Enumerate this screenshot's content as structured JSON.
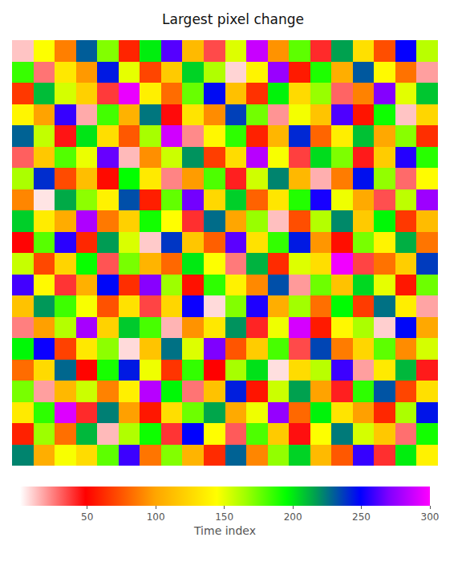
{
  "chart_data": {
    "type": "heatmap",
    "title": "Largest pixel change",
    "tick_labels": false,
    "colorbar_title": "Time index",
    "colorbar_range": [
      1,
      300
    ],
    "colorbar_ticks": [
      50,
      100,
      150,
      200,
      250,
      300
    ],
    "cells": [
      [
        12,
        145,
        88,
        230,
        171,
        60,
        199,
        263,
        110,
        35,
        152,
        287,
        94,
        178,
        41,
        216,
        129,
        73,
        250,
        160
      ],
      [
        185,
        27,
        133,
        96,
        244,
        150,
        70,
        118,
        205,
        162,
        9,
        139,
        276,
        57,
        190,
        104,
        231,
        142,
        84,
        19
      ],
      [
        66,
        210,
        154,
        121,
        38,
        295,
        137,
        82,
        176,
        247,
        113,
        64,
        198,
        126,
        167,
        30,
        89,
        271,
        151,
        208
      ],
      [
        140,
        99,
        258,
        17,
        183,
        106,
        225,
        47,
        131,
        92,
        236,
        174,
        21,
        147,
        115,
        262,
        55,
        193,
        12,
        124
      ],
      [
        229,
        158,
        45,
        201,
        128,
        76,
        164,
        289,
        23,
        141,
        187,
        59,
        108,
        241,
        80,
        136,
        209,
        101,
        170,
        63
      ],
      [
        31,
        117,
        180,
        149,
        266,
        14,
        93,
        156,
        219,
        68,
        127,
        283,
        146,
        37,
        203,
        172,
        44,
        119,
        255,
        188
      ],
      [
        163,
        240,
        72,
        112,
        52,
        195,
        134,
        24,
        97,
        181,
        43,
        155,
        222,
        109,
        16,
        87,
        246,
        168,
        29,
        143
      ],
      [
        90,
        6,
        214,
        169,
        138,
        233,
        58,
        177,
        268,
        125,
        206,
        79,
        132,
        189,
        253,
        148,
        102,
        34,
        159,
        277
      ],
      [
        206,
        135,
        103,
        281,
        86,
        121,
        192,
        144,
        40,
        227,
        100,
        167,
        13,
        73,
        161,
        221,
        118,
        197,
        66,
        111
      ],
      [
        48,
        179,
        256,
        61,
        217,
        153,
        11,
        238,
        116,
        78,
        264,
        130,
        186,
        244,
        95,
        53,
        173,
        139,
        213,
        85
      ],
      [
        157,
        71,
        123,
        194,
        33,
        173,
        107,
        81,
        200,
        145,
        26,
        212,
        62,
        152,
        128,
        297,
        36,
        84,
        120,
        237
      ],
      [
        260,
        142,
        39,
        105,
        248,
        63,
        272,
        166,
        54,
        187,
        138,
        91,
        233,
        20,
        175,
        114,
        204,
        150,
        56,
        175
      ],
      [
        114,
        218,
        184,
        146,
        74,
        130,
        36,
        124,
        251,
        8,
        171,
        254,
        104,
        165,
        83,
        196,
        67,
        226,
        136,
        18
      ],
      [
        25,
        98,
        161,
        279,
        122,
        207,
        182,
        15,
        94,
        133,
        219,
        42,
        148,
        290,
        57,
        141,
        163,
        10,
        248,
        101
      ],
      [
        197,
        251,
        69,
        133,
        169,
        8,
        115,
        226,
        152,
        270,
        75,
        119,
        182,
        35,
        235,
        87,
        124,
        178,
        92,
        154
      ],
      [
        82,
        126,
        228,
        50,
        191,
        244,
        148,
        65,
        186,
        49,
        164,
        202,
        7,
        127,
        160,
        259,
        19,
        134,
        211,
        44
      ],
      [
        173,
        19,
        109,
        156,
        89,
        137,
        283,
        197,
        27,
        114,
        243,
        55,
        156,
        216,
        99,
        43,
        187,
        232,
        70,
        129
      ],
      [
        134,
        187,
        292,
        41,
        223,
        98,
        56,
        128,
        175,
        215,
        102,
        148,
        275,
        81,
        198,
        131,
        98,
        61,
        163,
        245
      ],
      [
        59,
        166,
        83,
        211,
        14,
        162,
        193,
        39,
        249,
        144,
        32,
        181,
        118,
        46,
        145,
        224,
        154,
        117,
        28,
        192
      ],
      [
        222,
        104,
        146,
        127,
        178,
        259,
        85,
        171,
        107,
        62,
        229,
        90,
        168,
        205,
        110,
        76,
        258,
        40,
        199,
        138
      ]
    ]
  }
}
